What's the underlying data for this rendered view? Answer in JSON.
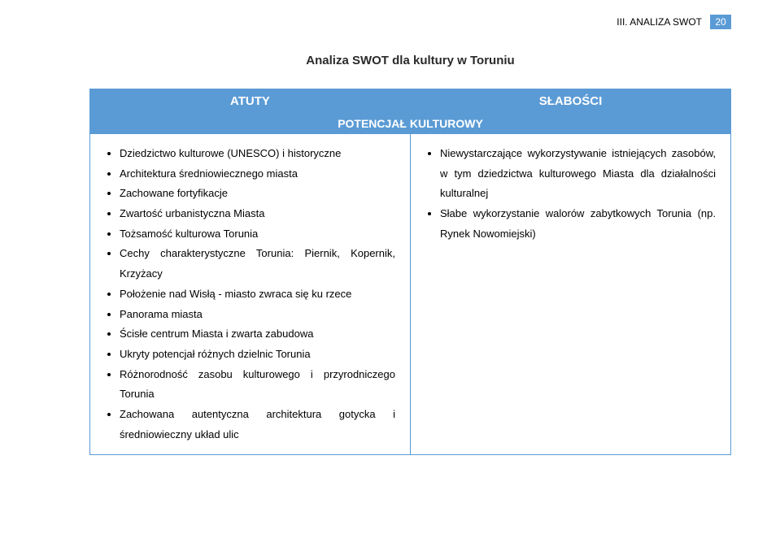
{
  "header": {
    "section_label": "III. ANALIZA SWOT",
    "page_number": "20"
  },
  "title": "Analiza SWOT dla kultury w Toruniu",
  "table": {
    "col_left": "ATUTY",
    "col_right": "SŁABOŚCI",
    "section": "POTENCJAŁ KULTUROWY",
    "strengths": [
      "Dziedzictwo kulturowe (UNESCO) i historyczne",
      "Architektura średniowiecznego miasta",
      "Zachowane fortyfikacje",
      "Zwartość urbanistyczna Miasta",
      "Tożsamość kulturowa Torunia",
      "Cechy charakterystyczne Torunia: Piernik, Kopernik, Krzyżacy",
      "Położenie nad Wisłą - miasto zwraca się ku rzece",
      "Panorama miasta",
      "Ścisłe centrum Miasta i zwarta zabudowa",
      "Ukryty potencjał różnych dzielnic Torunia",
      "Różnorodność zasobu kulturowego i przyrodniczego Torunia",
      "Zachowana autentyczna architektura gotycka i średniowieczny układ ulic"
    ],
    "weaknesses": [
      "Niewystarczające wykorzystywanie istniejących zasobów, w tym dziedzictwa kulturowego Miasta dla działalności kulturalnej",
      "Słabe wykorzystanie walorów zabytkowych Torunia (np. Rynek Nowomiejski)"
    ]
  },
  "colors": {
    "accent": "#5b9bd5",
    "text": "#000000",
    "white": "#ffffff"
  }
}
